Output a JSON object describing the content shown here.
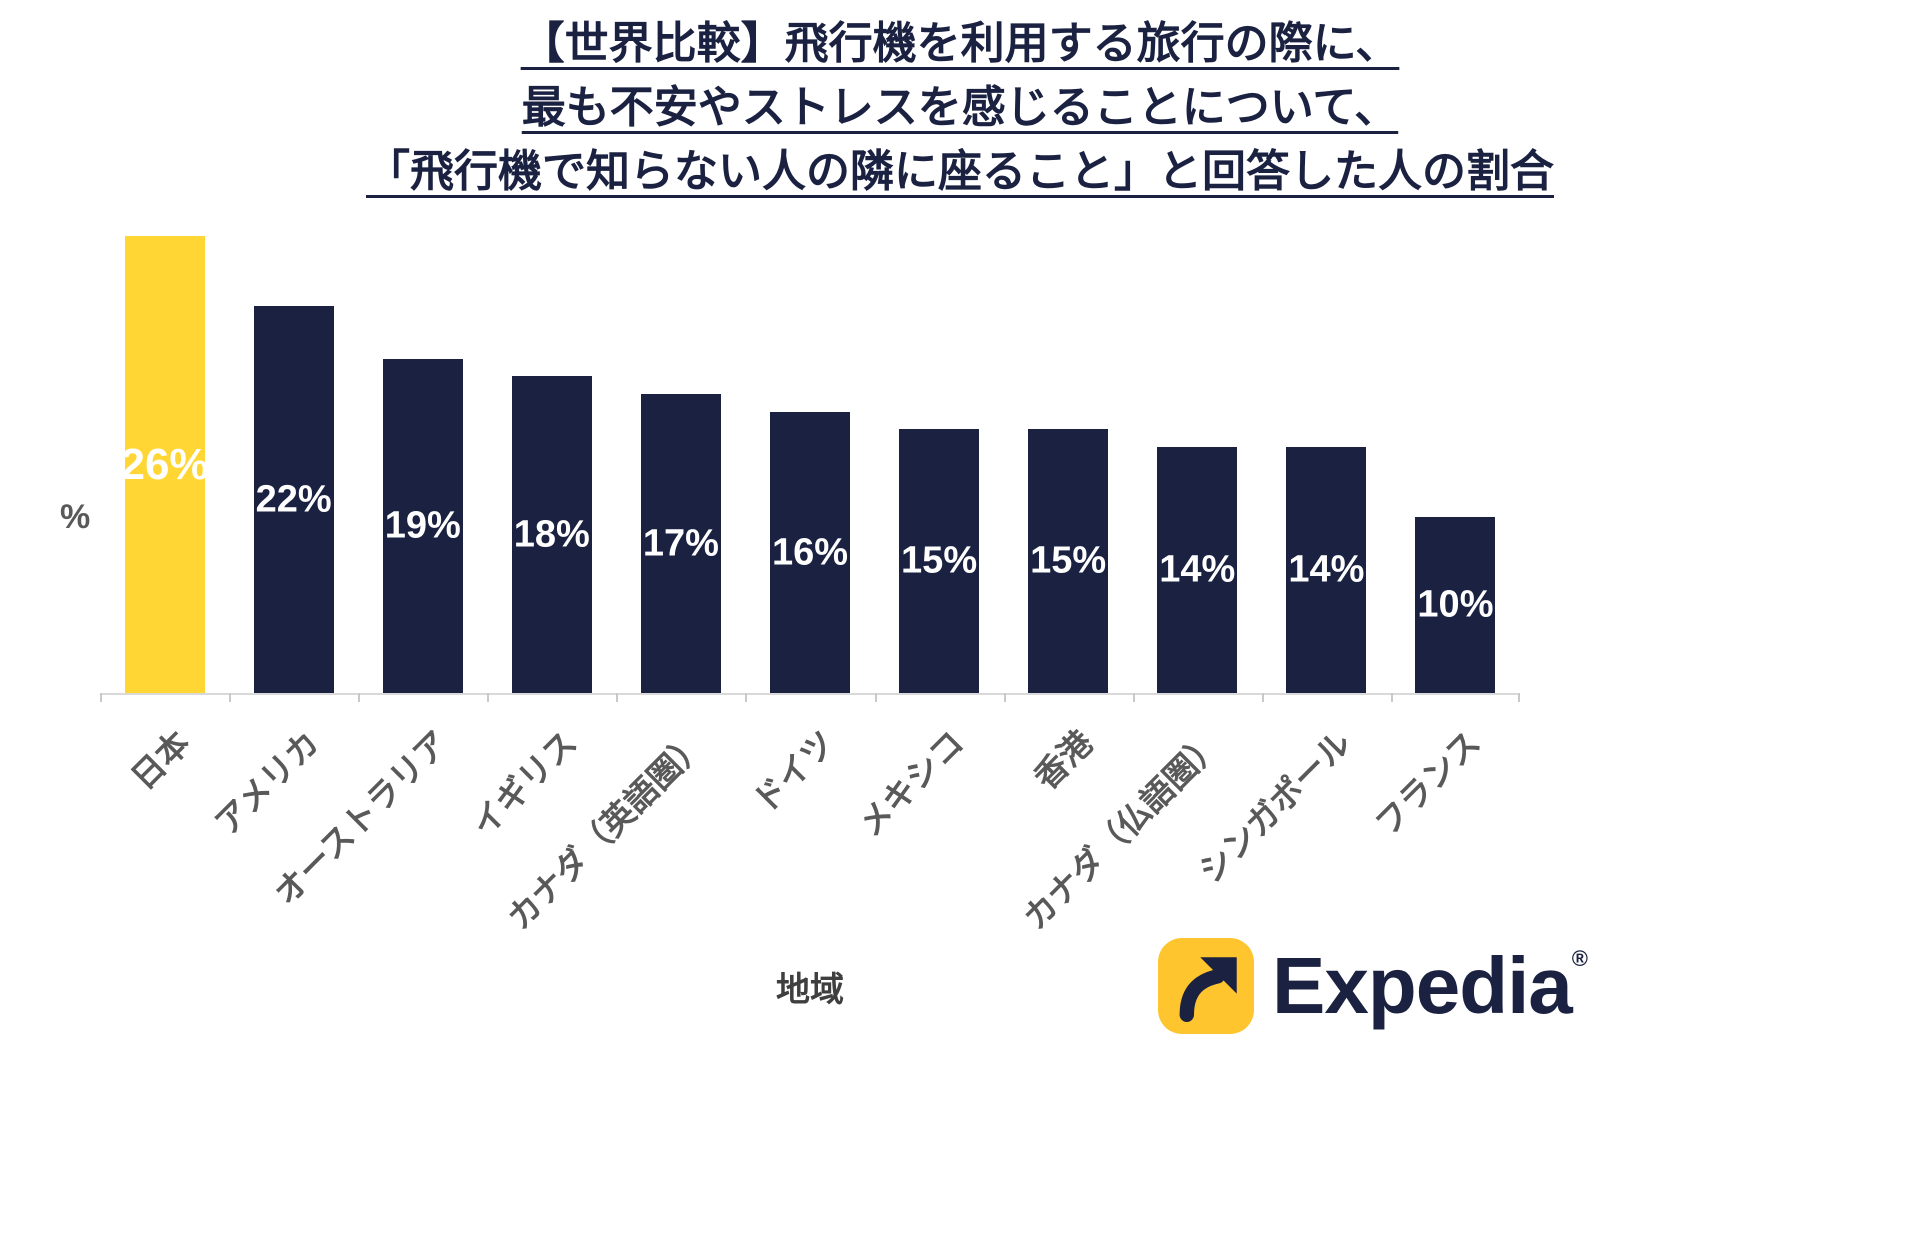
{
  "title": {
    "lines": [
      "【世界比較】飛行機を利用する旅行の際に、",
      "最も不安やストレスを感じることについて、",
      "「飛行機で知らない人の隣に座ること」と回答した人の割合"
    ]
  },
  "chart_data": {
    "type": "bar",
    "title": "【世界比較】飛行機を利用する旅行の際に、最も不安やストレスを感じることについて、「飛行機で知らない人の隣に座ること」と回答した人の割合",
    "categories": [
      "日本",
      "アメリカ",
      "オーストラリア",
      "イギリス",
      "カナダ（英語圏）",
      "ドイツ",
      "メキシコ",
      "香港",
      "カナダ（仏語圏）",
      "シンガポール",
      "フランス"
    ],
    "values": [
      26,
      22,
      19,
      18,
      17,
      16,
      15,
      15,
      14,
      14,
      10
    ],
    "labels": [
      "26%",
      "22%",
      "19%",
      "18%",
      "17%",
      "16%",
      "15%",
      "15%",
      "14%",
      "14%",
      "10%"
    ],
    "xlabel": "地域",
    "ylabel": "%",
    "ylim": [
      0,
      27
    ],
    "grid": false,
    "legend": false,
    "highlight_index": 0,
    "colors": {
      "highlight": "#FFD633",
      "default": "#1B2141",
      "value_label": "#FFFFFF"
    }
  },
  "logo": {
    "text": "Expedia",
    "registered": "®",
    "icon": "expedia-arrow-icon",
    "colors": {
      "yellow": "#FEC52E",
      "navy": "#1B2141"
    }
  }
}
